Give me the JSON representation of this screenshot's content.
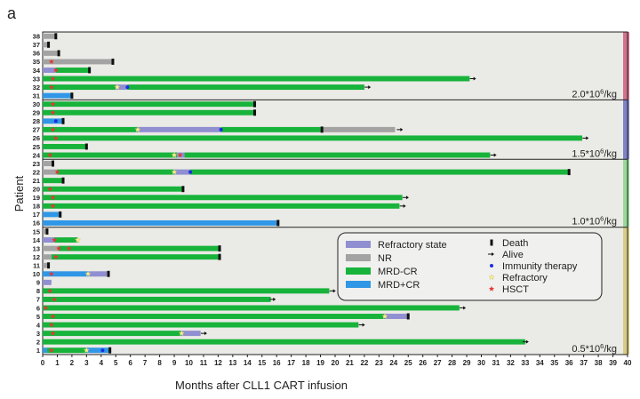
{
  "chart_data": {
    "type": "swimmer",
    "panel_label": "a",
    "xlabel": "Months after CLL1 CART infusion",
    "ylabel": "Patient",
    "xlim": [
      0,
      40
    ],
    "x_ticks": [
      0,
      1,
      2,
      3,
      4,
      5,
      6,
      7,
      8,
      9,
      10,
      11,
      12,
      13,
      14,
      15,
      16,
      17,
      18,
      19,
      20,
      21,
      22,
      23,
      24,
      25,
      26,
      27,
      28,
      29,
      30,
      31,
      32,
      33,
      34,
      35,
      36,
      37,
      38,
      39,
      40
    ],
    "colors": {
      "refractory_state": "#8f8fd1",
      "nr": "#a3a3a3",
      "mrd_cr": "#17b33b",
      "mrd_pos_cr": "#2f97e6",
      "immunity_therapy": "#1a2ee0",
      "refractory_marker": "#f6f08a",
      "hsct": "#e83434",
      "death": "#111111",
      "background": "#eaeae6"
    },
    "dose_groups": [
      {
        "label": "2.0*10",
        "sup": "6",
        "unit": "/kg",
        "patients_from": 31,
        "patients_to": 38,
        "band_color": "#d3728c"
      },
      {
        "label": "1.5*10",
        "sup": "6",
        "unit": "/kg",
        "patients_from": 24,
        "patients_to": 30,
        "band_color": "#7f83c6"
      },
      {
        "label": "1.0*10",
        "sup": "6",
        "unit": "/kg",
        "patients_from": 16,
        "patients_to": 23,
        "band_color": "#9ad99c"
      },
      {
        "label": "0.5*10",
        "sup": "6",
        "unit": "/kg",
        "patients_from": 1,
        "patients_to": 15,
        "band_color": "#d9cc86"
      }
    ],
    "legend": [
      {
        "label": "Refractory state",
        "kind": "bar",
        "color_key": "refractory_state"
      },
      {
        "label": "NR",
        "kind": "bar",
        "color_key": "nr"
      },
      {
        "label": "MRD-CR",
        "kind": "bar",
        "color_key": "mrd_cr"
      },
      {
        "label": "MRD+CR",
        "kind": "bar",
        "color_key": "mrd_pos_cr"
      },
      {
        "label": "Death",
        "kind": "death"
      },
      {
        "label": "Alive",
        "kind": "alive"
      },
      {
        "label": "Immunity therapy",
        "kind": "immunity"
      },
      {
        "label": "Refractory",
        "kind": "refractory"
      },
      {
        "label": "HSCT",
        "kind": "hsct"
      }
    ],
    "patients": [
      {
        "id": 1,
        "segments": [
          [
            "mrd_pos_cr",
            0,
            0.3
          ],
          [
            "mrd_cr",
            0.3,
            3.0
          ],
          [
            "mrd_pos_cr",
            3.0,
            4.6
          ]
        ],
        "markers": [
          [
            "hsct",
            0.6
          ],
          [
            "refractory",
            3.0
          ],
          [
            "immunity",
            4.1
          ]
        ],
        "end": "death",
        "end_at": 4.6
      },
      {
        "id": 2,
        "segments": [
          [
            "mrd_cr",
            0,
            33.0
          ]
        ],
        "markers": [],
        "end": "alive",
        "end_at": 33.0
      },
      {
        "id": 3,
        "segments": [
          [
            "mrd_cr",
            0,
            9.5
          ],
          [
            "refractory_state",
            9.5,
            10.8
          ]
        ],
        "markers": [
          [
            "hsct",
            0.7
          ],
          [
            "refractory",
            9.5
          ]
        ],
        "end": "alive",
        "end_at": 11.0
      },
      {
        "id": 4,
        "segments": [
          [
            "mrd_cr",
            0,
            21.6
          ]
        ],
        "markers": [
          [
            "hsct",
            0.6
          ]
        ],
        "end": "alive",
        "end_at": 21.8
      },
      {
        "id": 5,
        "segments": [
          [
            "mrd_cr",
            0,
            23.4
          ],
          [
            "refractory_state",
            23.4,
            25.0
          ]
        ],
        "markers": [
          [
            "hsct",
            0.7
          ],
          [
            "refractory",
            23.4
          ]
        ],
        "end": "death",
        "end_at": 25.0
      },
      {
        "id": 6,
        "segments": [
          [
            "mrd_cr",
            0,
            28.5
          ]
        ],
        "markers": [
          [
            "hsct",
            0.2
          ]
        ],
        "end": "alive",
        "end_at": 28.7
      },
      {
        "id": 7,
        "segments": [
          [
            "mrd_cr",
            0,
            15.6
          ]
        ],
        "markers": [
          [
            "hsct",
            0.8
          ]
        ],
        "end": "alive",
        "end_at": 15.7
      },
      {
        "id": 8,
        "segments": [
          [
            "mrd_cr",
            0,
            19.6
          ]
        ],
        "markers": [
          [
            "hsct",
            0.5
          ]
        ],
        "end": "alive",
        "end_at": 19.8
      },
      {
        "id": 9,
        "segments": [
          [
            "refractory_state",
            0,
            0.6
          ]
        ],
        "markers": [],
        "end": "none",
        "end_at": 0.6
      },
      {
        "id": 10,
        "segments": [
          [
            "mrd_pos_cr",
            0,
            3.1
          ],
          [
            "refractory_state",
            3.1,
            4.4
          ]
        ],
        "markers": [
          [
            "hsct",
            0.6
          ],
          [
            "refractory",
            3.1
          ]
        ],
        "end": "death",
        "end_at": 4.5
      },
      {
        "id": 11,
        "segments": [
          [
            "nr",
            0,
            0.4
          ]
        ],
        "markers": [],
        "end": "death",
        "end_at": 0.4
      },
      {
        "id": 12,
        "segments": [
          [
            "nr",
            0,
            0.6
          ],
          [
            "mrd_cr",
            0.6,
            12.1
          ]
        ],
        "markers": [
          [
            "hsct",
            0.9
          ]
        ],
        "end": "death",
        "end_at": 12.1
      },
      {
        "id": 13,
        "segments": [
          [
            "nr",
            0,
            1.1
          ],
          [
            "mrd_cr",
            1.1,
            12.1
          ]
        ],
        "markers": [
          [
            "hsct",
            1.1
          ],
          [
            "hsct",
            1.8
          ]
        ],
        "end": "death",
        "end_at": 12.1
      },
      {
        "id": 14,
        "segments": [
          [
            "refractory_state",
            0,
            0.8
          ],
          [
            "mrd_cr",
            0.8,
            2.4
          ]
        ],
        "markers": [
          [
            "hsct",
            0.8
          ],
          [
            "refractory",
            2.4
          ]
        ],
        "end": "none",
        "end_at": 2.4
      },
      {
        "id": 15,
        "segments": [
          [
            "nr",
            0,
            0.3
          ]
        ],
        "markers": [],
        "end": "death",
        "end_at": 0.3
      },
      {
        "id": 16,
        "segments": [
          [
            "mrd_pos_cr",
            0,
            16.1
          ]
        ],
        "markers": [],
        "end": "death",
        "end_at": 16.1
      },
      {
        "id": 17,
        "segments": [
          [
            "mrd_pos_cr",
            0,
            1.2
          ]
        ],
        "markers": [],
        "end": "death",
        "end_at": 1.2
      },
      {
        "id": 18,
        "segments": [
          [
            "mrd_cr",
            0,
            24.4
          ]
        ],
        "markers": [
          [
            "hsct",
            0.7
          ]
        ],
        "end": "alive",
        "end_at": 24.6
      },
      {
        "id": 19,
        "segments": [
          [
            "mrd_cr",
            0,
            24.6
          ]
        ],
        "markers": [
          [
            "hsct",
            0.7
          ]
        ],
        "end": "alive",
        "end_at": 24.8
      },
      {
        "id": 20,
        "segments": [
          [
            "mrd_cr",
            0,
            9.6
          ]
        ],
        "markers": [
          [
            "hsct",
            0.5
          ]
        ],
        "end": "death",
        "end_at": 9.6
      },
      {
        "id": 21,
        "segments": [
          [
            "mrd_cr",
            0,
            1.4
          ]
        ],
        "markers": [],
        "end": "death",
        "end_at": 1.4
      },
      {
        "id": 22,
        "segments": [
          [
            "nr",
            0,
            1.0
          ],
          [
            "mrd_cr",
            1.0,
            9.0
          ],
          [
            "refractory_state",
            9.0,
            10.1
          ],
          [
            "mrd_cr",
            10.1,
            36.0
          ]
        ],
        "markers": [
          [
            "hsct",
            1.0
          ],
          [
            "refractory",
            9.0
          ],
          [
            "immunity",
            10.1
          ]
        ],
        "end": "death",
        "end_at": 36.0
      },
      {
        "id": 23,
        "segments": [
          [
            "nr",
            0,
            0.7
          ]
        ],
        "markers": [],
        "end": "death",
        "end_at": 0.7
      },
      {
        "id": 24,
        "segments": [
          [
            "mrd_cr",
            0,
            9.2
          ],
          [
            "refractory_state",
            9.2,
            9.7
          ],
          [
            "mrd_cr",
            9.7,
            30.6
          ]
        ],
        "markers": [
          [
            "hsct",
            0.5
          ],
          [
            "refractory",
            9.0
          ],
          [
            "hsct",
            9.4
          ]
        ],
        "end": "alive",
        "end_at": 30.8
      },
      {
        "id": 25,
        "segments": [
          [
            "mrd_cr",
            0,
            3.0
          ]
        ],
        "markers": [],
        "end": "death",
        "end_at": 3.0
      },
      {
        "id": 26,
        "segments": [
          [
            "mrd_cr",
            0,
            36.9
          ]
        ],
        "markers": [
          [
            "hsct",
            0.9
          ]
        ],
        "end": "alive",
        "end_at": 37.1
      },
      {
        "id": 27,
        "segments": [
          [
            "mrd_cr",
            0,
            6.5
          ],
          [
            "refractory_state",
            6.5,
            12.2
          ],
          [
            "mrd_cr",
            12.2,
            19.1
          ],
          [
            "nr",
            19.1,
            24.1
          ]
        ],
        "markers": [
          [
            "hsct",
            0.7
          ],
          [
            "refractory",
            6.5
          ],
          [
            "immunity",
            12.2
          ],
          [
            "death",
            19.1
          ]
        ],
        "end": "alive",
        "end_at": 24.4
      },
      {
        "id": 28,
        "segments": [
          [
            "mrd_pos_cr",
            0,
            1.4
          ]
        ],
        "markers": [
          [
            "immunity",
            0.9
          ]
        ],
        "end": "death",
        "end_at": 1.4
      },
      {
        "id": 29,
        "segments": [
          [
            "mrd_cr",
            0,
            14.5
          ]
        ],
        "markers": [
          [
            "hsct",
            0.7
          ]
        ],
        "end": "death",
        "end_at": 14.5
      },
      {
        "id": 30,
        "segments": [
          [
            "mrd_cr",
            0,
            14.5
          ]
        ],
        "markers": [
          [
            "hsct",
            0.7
          ]
        ],
        "end": "death",
        "end_at": 14.5
      },
      {
        "id": 31,
        "segments": [
          [
            "mrd_pos_cr",
            0,
            2.0
          ]
        ],
        "markers": [],
        "end": "death",
        "end_at": 2.0
      },
      {
        "id": 32,
        "segments": [
          [
            "mrd_cr",
            0,
            5.0
          ],
          [
            "refractory_state",
            5.0,
            5.8
          ],
          [
            "mrd_cr",
            5.8,
            22.0
          ]
        ],
        "markers": [
          [
            "hsct",
            0.6
          ],
          [
            "refractory",
            5.1
          ],
          [
            "immunity",
            5.8
          ]
        ],
        "end": "alive",
        "end_at": 22.2
      },
      {
        "id": 33,
        "segments": [
          [
            "mrd_cr",
            0,
            29.2
          ]
        ],
        "markers": [
          [
            "hsct",
            0.7
          ]
        ],
        "end": "alive",
        "end_at": 29.4
      },
      {
        "id": 34,
        "segments": [
          [
            "refractory_state",
            0,
            0.9
          ],
          [
            "mrd_cr",
            0.9,
            3.2
          ]
        ],
        "markers": [
          [
            "hsct",
            0.9
          ]
        ],
        "end": "death",
        "end_at": 3.2
      },
      {
        "id": 35,
        "segments": [
          [
            "nr",
            0,
            4.8
          ]
        ],
        "markers": [
          [
            "hsct",
            0.6
          ]
        ],
        "end": "death",
        "end_at": 4.8
      },
      {
        "id": 36,
        "segments": [
          [
            "nr",
            0,
            1.1
          ]
        ],
        "markers": [],
        "end": "death",
        "end_at": 1.1
      },
      {
        "id": 37,
        "segments": [
          [
            "nr",
            0,
            0.4
          ]
        ],
        "markers": [],
        "end": "death",
        "end_at": 0.4
      },
      {
        "id": 38,
        "segments": [
          [
            "nr",
            0,
            0.9
          ]
        ],
        "markers": [],
        "end": "death",
        "end_at": 0.9
      }
    ]
  }
}
